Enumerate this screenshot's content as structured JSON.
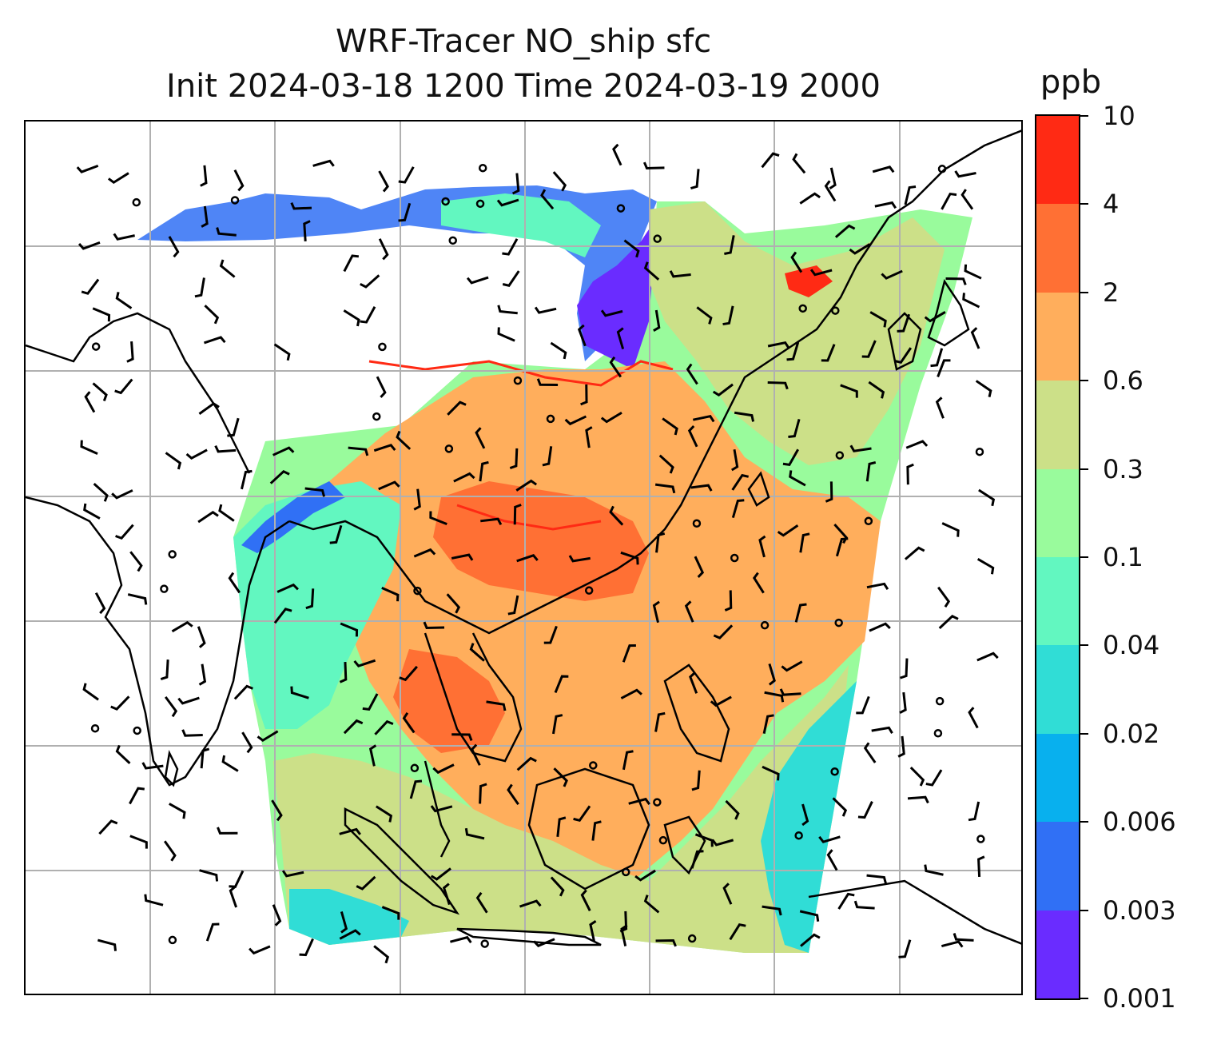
{
  "title": {
    "line1": "WRF-Tracer NO_ship sfc",
    "line2": "Init 2024-03-18 1200 Time 2024-03-19 2000"
  },
  "colorbar": {
    "unit": "ppb",
    "labels": [
      "0.001",
      "0.003",
      "0.006",
      "0.02",
      "0.04",
      "0.1",
      "0.3",
      "0.6",
      "2",
      "4",
      "10"
    ],
    "colors": [
      "#6a2cff",
      "#3070f5",
      "#08b0ee",
      "#30ddd6",
      "#62f7c0",
      "#99fb9c",
      "#cce088",
      "#ffae5c",
      "#ff7034",
      "#ff2a14"
    ]
  },
  "map": {
    "background": "#ffffff",
    "coastline_color": "#000000",
    "grid_color": "#b0b0b0",
    "wind_barb_color": "#000000"
  }
}
